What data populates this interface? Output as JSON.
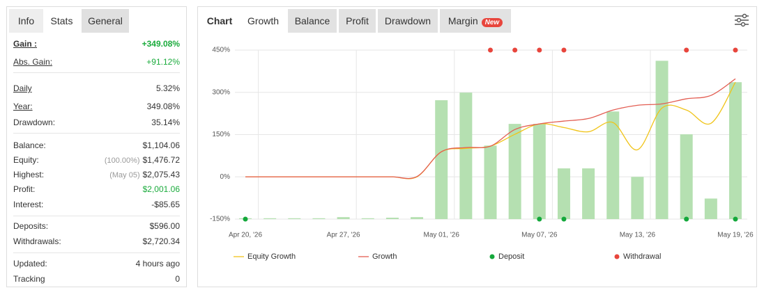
{
  "stats_panel": {
    "tabs": [
      "Info",
      "Stats",
      "General"
    ],
    "groups": [
      [
        {
          "label": "Gain :",
          "value": "+349.08%",
          "color": "#1aab3c"
        },
        {
          "label": "Abs. Gain:",
          "value": "+91.12%",
          "color": "#1aab3c"
        }
      ],
      [
        {
          "label": "Daily",
          "value": "5.32%"
        },
        {
          "label": "Year:",
          "value": "349.08%"
        },
        {
          "label": "Drawdown:",
          "value": "35.14%"
        }
      ],
      [
        {
          "label": "Balance:",
          "value": "$1,104.06"
        },
        {
          "label": "Equity:",
          "note": "(100.00%)",
          "value": "$1,476.72"
        },
        {
          "label": "Highest:",
          "note": "(May 05)",
          "value": "$2,075.43"
        },
        {
          "label": "Profit:",
          "value": "$2,001.06",
          "color": "#1aab3c"
        },
        {
          "label": "Interest:",
          "value": "-$85.65"
        }
      ],
      [
        {
          "label": "Deposits:",
          "value": "$596.00"
        },
        {
          "label": "Withdrawals:",
          "value": "$2,720.34"
        }
      ],
      [
        {
          "label": "Updated:",
          "value": "4 hours ago"
        },
        {
          "label": "Tracking",
          "value": "0"
        }
      ]
    ]
  },
  "chart_panel": {
    "tabs": [
      "Chart",
      "Growth",
      "Balance",
      "Profit",
      "Drawdown",
      "Margin"
    ],
    "badge": "New"
  },
  "chart_data": {
    "type": "combo",
    "categories": [
      "Apr 20, '26",
      null,
      null,
      null,
      "Apr 27, '26",
      null,
      null,
      null,
      "May 01, '26",
      null,
      null,
      null,
      "May 07, '26",
      null,
      null,
      null,
      "May 13, '26",
      null,
      null,
      null,
      "May 19, '26"
    ],
    "ylim": [
      -150,
      450
    ],
    "yticks": [
      {
        "value": -150,
        "label": "-150%"
      },
      {
        "value": 0,
        "label": "0%"
      },
      {
        "value": 150,
        "label": "150%"
      },
      {
        "value": 300,
        "label": "300%"
      },
      {
        "value": 450,
        "label": "450%"
      }
    ],
    "grid": true,
    "series": [
      {
        "type": "bar",
        "color": "#b5e0b1",
        "values": [
          -147,
          -147,
          -147,
          -147,
          -143,
          -147,
          -145,
          -143,
          272,
          299,
          111,
          188,
          188,
          30,
          30,
          232,
          0,
          412,
          151,
          -77,
          336
        ]
      },
      {
        "type": "line",
        "name": "Equity Growth",
        "color": "#f0c419",
        "values": [
          0,
          0,
          0,
          0,
          0,
          0,
          0,
          0,
          89,
          101,
          109,
          151,
          188,
          175,
          160,
          193,
          96,
          244,
          237,
          190,
          336
        ]
      },
      {
        "type": "line",
        "name": "Growth",
        "color": "#e35d52",
        "values": [
          0,
          0,
          0,
          0,
          0,
          0,
          0,
          1,
          89,
          104,
          109,
          168,
          188,
          198,
          207,
          237,
          254,
          259,
          277,
          289,
          348
        ]
      },
      {
        "type": "marker",
        "name": "Deposit",
        "color": "#14a83b",
        "values": [
          -150,
          null,
          null,
          null,
          null,
          null,
          null,
          null,
          null,
          null,
          null,
          null,
          -150,
          -150,
          null,
          null,
          null,
          null,
          -150,
          null,
          -150
        ]
      },
      {
        "type": "marker",
        "name": "Withdrawal",
        "color": "#e8453c",
        "values": [
          null,
          null,
          null,
          null,
          null,
          null,
          null,
          null,
          null,
          null,
          450,
          450,
          450,
          450,
          null,
          null,
          null,
          null,
          450,
          null,
          450
        ]
      }
    ]
  }
}
